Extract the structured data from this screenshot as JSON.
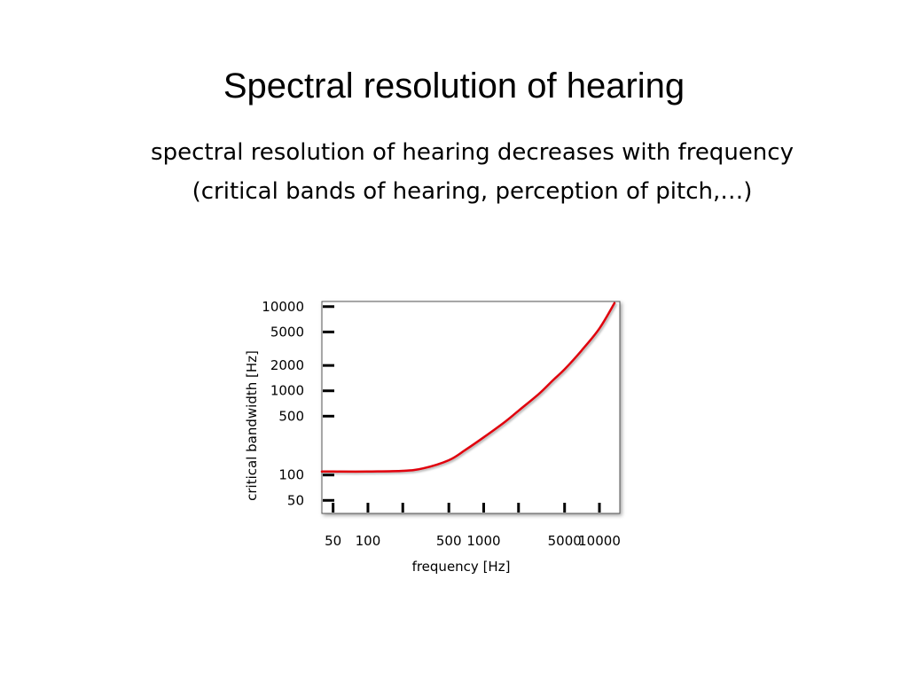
{
  "slide": {
    "title": "Spectral resolution of hearing",
    "subtitle_lines": [
      "spectral resolution of hearing decreases with frequency",
      "(critical bands of hearing, perception of pitch,…)"
    ]
  },
  "chart_data": {
    "type": "line",
    "title": "",
    "xlabel": "frequency [Hz]",
    "ylabel": "critical bandwidth [Hz]",
    "x_ticks": [
      "50",
      "100",
      "500",
      "1000",
      "5000",
      "10000"
    ],
    "y_ticks": [
      "10000",
      "5000",
      "2000",
      "1000",
      "500",
      "100",
      "50"
    ],
    "x_scale": "log",
    "y_scale": "log",
    "xlim": [
      40,
      15000
    ],
    "ylim": [
      35,
      11500
    ],
    "grid": false,
    "legend": "none",
    "line_color": "#e0000a",
    "series": [
      {
        "x": [
          40,
          50,
          100,
          200,
          300,
          500,
          700,
          1000,
          1500,
          2000,
          3000,
          4000,
          5000,
          7000,
          10000,
          13500
        ],
        "y": [
          110,
          110,
          110,
          112,
          120,
          150,
          200,
          280,
          420,
          580,
          920,
          1350,
          1800,
          3000,
          5500,
          11000
        ]
      }
    ]
  }
}
